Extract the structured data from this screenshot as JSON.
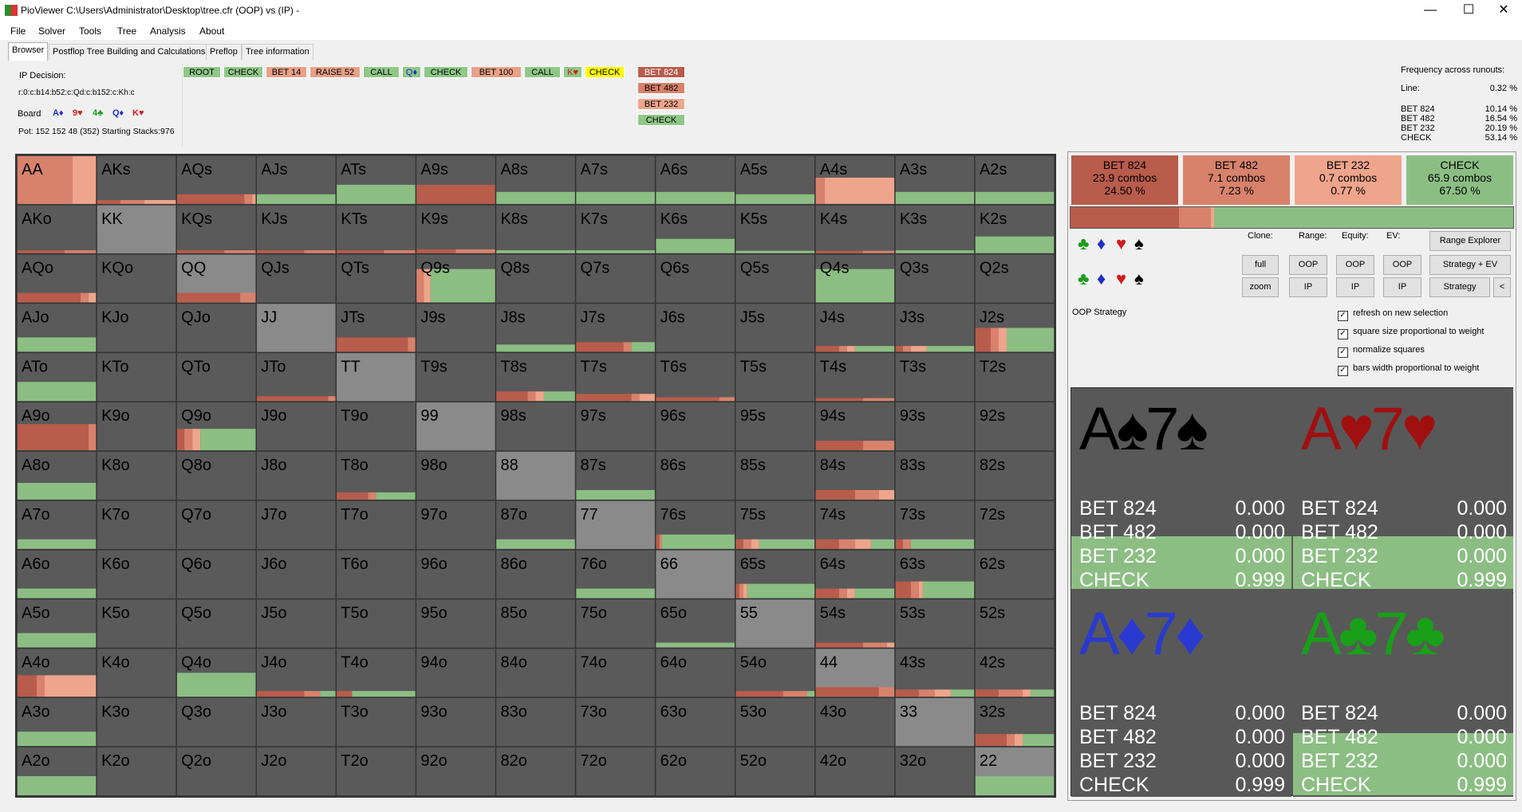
{
  "window": {
    "title": "PioViewer C:\\Users\\Administrator\\Desktop\\tree.cfr (OOP) vs (IP) -",
    "minimize": "—",
    "maximize": "☐",
    "close": "✕"
  },
  "menu": [
    "File",
    "Solver",
    "Tools",
    "Tree",
    "Analysis",
    "About"
  ],
  "tabs": [
    "Browser",
    "Postflop Tree Building and Calculations",
    "Preflop",
    "Tree information"
  ],
  "info": {
    "decision": "IP Decision:",
    "line": "r:0:c:b14:b52:c:Qd:c:b152:c:Kh:c",
    "board_label": "Board",
    "board": [
      {
        "text": "A♦",
        "suit": "d"
      },
      {
        "text": "9♥",
        "suit": "h"
      },
      {
        "text": "4♣",
        "suit": "c"
      },
      {
        "text": "Q♦",
        "suit": "d"
      },
      {
        "text": "K♥",
        "suit": "h"
      }
    ],
    "pot": "Pot: 152 152 48 (352) Starting Stacks:976"
  },
  "tree_nodes": [
    {
      "label": "ROOT",
      "bg": "#90c888"
    },
    {
      "label": "CHECK",
      "bg": "#90c888"
    },
    {
      "label": "BET 14",
      "bg": "#e8a188"
    },
    {
      "label": "RAISE 52",
      "bg": "#e8a188"
    },
    {
      "label": "CALL",
      "bg": "#90c888"
    },
    {
      "label": "Q♦",
      "bg": "#90c888",
      "color": "#1c2fc4"
    },
    {
      "label": "CHECK",
      "bg": "#90c888"
    },
    {
      "label": "BET 100",
      "bg": "#e8a188"
    },
    {
      "label": "CALL",
      "bg": "#90c888"
    },
    {
      "label": "K♥",
      "bg": "#90c888",
      "color": "#d41a1a"
    },
    {
      "label": "CHECK",
      "bg": "#ffff00"
    }
  ],
  "tree_options": [
    {
      "label": "BET 824",
      "bg": "#b85c4c"
    },
    {
      "label": "BET 482",
      "bg": "#d8826c"
    },
    {
      "label": "BET 232",
      "bg": "#eea58c"
    },
    {
      "label": "CHECK",
      "bg": "#90c888"
    }
  ],
  "freq": {
    "title": "Frequency across runouts:",
    "line_label": "Line:",
    "line_value": "0.32 %",
    "rows": [
      {
        "name": "BET 824",
        "value": "10.14 %"
      },
      {
        "name": "BET 482",
        "value": "16.54 %"
      },
      {
        "name": "BET 232",
        "value": "20.19 %"
      },
      {
        "name": "CHECK",
        "value": "53.14 %"
      }
    ]
  },
  "grid_cells": [
    "AA",
    "AKs",
    "AQs",
    "AJs",
    "ATs",
    "A9s",
    "A8s",
    "A7s",
    "A6s",
    "A5s",
    "A4s",
    "A3s",
    "A2s",
    "AKo",
    "KK",
    "KQs",
    "KJs",
    "KTs",
    "K9s",
    "K8s",
    "K7s",
    "K6s",
    "K5s",
    "K4s",
    "K3s",
    "K2s",
    "AQo",
    "KQo",
    "QQ",
    "QJs",
    "QTs",
    "Q9s",
    "Q8s",
    "Q7s",
    "Q6s",
    "Q5s",
    "Q4s",
    "Q3s",
    "Q2s",
    "AJo",
    "KJo",
    "QJo",
    "JJ",
    "JTs",
    "J9s",
    "J8s",
    "J7s",
    "J6s",
    "J5s",
    "J4s",
    "J3s",
    "J2s",
    "ATo",
    "KTo",
    "QTo",
    "JTo",
    "TT",
    "T9s",
    "T8s",
    "T7s",
    "T6s",
    "T5s",
    "T4s",
    "T3s",
    "T2s",
    "A9o",
    "K9o",
    "Q9o",
    "J9o",
    "T9o",
    "99",
    "98s",
    "97s",
    "96s",
    "95s",
    "94s",
    "93s",
    "92s",
    "A8o",
    "K8o",
    "Q8o",
    "J8o",
    "T8o",
    "98o",
    "88",
    "87s",
    "86s",
    "85s",
    "84s",
    "83s",
    "82s",
    "A7o",
    "K7o",
    "Q7o",
    "J7o",
    "T7o",
    "97o",
    "87o",
    "77",
    "76s",
    "75s",
    "74s",
    "73s",
    "72s",
    "A6o",
    "K6o",
    "Q6o",
    "J6o",
    "T6o",
    "96o",
    "86o",
    "76o",
    "66",
    "65s",
    "64s",
    "63s",
    "62s",
    "A5o",
    "K5o",
    "Q5o",
    "J5o",
    "T5o",
    "95o",
    "85o",
    "75o",
    "65o",
    "55",
    "54s",
    "53s",
    "52s",
    "A4o",
    "K4o",
    "Q4o",
    "J4o",
    "T4o",
    "94o",
    "84o",
    "74o",
    "64o",
    "54o",
    "44",
    "43s",
    "42s",
    "A3o",
    "K3o",
    "Q3o",
    "J3o",
    "T3o",
    "93o",
    "83o",
    "73o",
    "63o",
    "53o",
    "43o",
    "33",
    "32s",
    "A2o",
    "K2o",
    "Q2o",
    "J2o",
    "T2o",
    "92o",
    "82o",
    "72o",
    "62o",
    "52o",
    "42o",
    "32o",
    "22"
  ],
  "grid_strategy": {
    "AA": {
      "h": 1.0,
      "a": [
        0,
        0.7,
        0.3,
        0
      ]
    },
    "AKs": {
      "h": 0.08,
      "a": [
        0.3,
        0.3,
        0.4,
        0
      ]
    },
    "AQs": {
      "h": 0.2,
      "a": [
        0.85,
        0.1,
        0.05,
        0
      ]
    },
    "AJs": {
      "h": 0.2,
      "a": [
        0,
        0,
        0,
        1
      ]
    },
    "ATs": {
      "h": 0.4,
      "a": [
        0,
        0,
        0,
        1
      ]
    },
    "A9s": {
      "h": 0.4,
      "a": [
        1,
        0,
        0,
        0
      ]
    },
    "A8s": {
      "h": 0.25,
      "a": [
        0,
        0,
        0,
        1
      ]
    },
    "A7s": {
      "h": 0.25,
      "a": [
        0,
        0,
        0,
        1
      ]
    },
    "A6s": {
      "h": 0.25,
      "a": [
        0,
        0,
        0,
        1
      ]
    },
    "A5s": {
      "h": 0.2,
      "a": [
        0,
        0,
        0,
        1
      ]
    },
    "A4s": {
      "h": 0.55,
      "a": [
        0,
        0.12,
        0.88,
        0
      ]
    },
    "A3s": {
      "h": 0.25,
      "a": [
        0,
        0,
        0,
        1
      ]
    },
    "A2s": {
      "h": 0.25,
      "a": [
        0,
        0,
        0,
        1
      ]
    },
    "AKo": {
      "h": 0.06,
      "a": [
        0.6,
        0.4,
        0,
        0
      ]
    },
    "KQs": {
      "h": 0.06,
      "a": [
        0.6,
        0.4,
        0,
        0
      ]
    },
    "KJs": {
      "h": 0.06,
      "a": [
        0.6,
        0.4,
        0,
        0
      ]
    },
    "KTs": {
      "h": 0.06,
      "a": [
        0.6,
        0.4,
        0,
        0
      ]
    },
    "K9s": {
      "h": 0.08,
      "a": [
        0.5,
        0.5,
        0,
        0
      ]
    },
    "K8s": {
      "h": 0.06,
      "a": [
        0,
        0,
        0,
        1
      ]
    },
    "K7s": {
      "h": 0.06,
      "a": [
        0,
        0,
        0,
        1
      ]
    },
    "K6s": {
      "h": 0.3,
      "a": [
        0,
        0,
        0,
        1
      ]
    },
    "K5s": {
      "h": 0.05,
      "a": [
        0,
        0,
        0,
        1
      ]
    },
    "K4s": {
      "h": 0.05,
      "a": [
        0.6,
        0.4,
        0,
        0
      ]
    },
    "K3s": {
      "h": 0.06,
      "a": [
        0,
        0,
        0,
        1
      ]
    },
    "K2s": {
      "h": 0.35,
      "a": [
        0,
        0,
        0,
        1
      ]
    },
    "AQo": {
      "h": 0.2,
      "a": [
        0.8,
        0.1,
        0.1,
        0
      ]
    },
    "QQ": {
      "h": 0.2,
      "a": [
        0.8,
        0.2,
        0,
        0
      ]
    },
    "Q9s": {
      "h": 0.7,
      "a": [
        0,
        0.1,
        0.08,
        0.82
      ]
    },
    "Q4s": {
      "h": 0.7,
      "a": [
        0,
        0,
        0,
        1
      ]
    },
    "AJo": {
      "h": 0.3,
      "a": [
        0,
        0,
        0,
        1
      ]
    },
    "JTs": {
      "h": 0.3,
      "a": [
        0.9,
        0.1,
        0,
        0
      ]
    },
    "J8s": {
      "h": 0.15,
      "a": [
        0,
        0,
        0,
        1
      ]
    },
    "J7s": {
      "h": 0.2,
      "a": [
        0.6,
        0.1,
        0,
        0.3
      ]
    },
    "J4s": {
      "h": 0.12,
      "a": [
        0.3,
        0.1,
        0.1,
        0.5
      ]
    },
    "J3s": {
      "h": 0.12,
      "a": [
        0.1,
        0.1,
        0.2,
        0.6
      ]
    },
    "J2s": {
      "h": 0.5,
      "a": [
        0.2,
        0.1,
        0.1,
        0.6
      ]
    },
    "ATo": {
      "h": 0.4,
      "a": [
        0,
        0,
        0,
        1
      ]
    },
    "JTo": {
      "h": 0.1,
      "a": [
        0.9,
        0.1,
        0,
        0
      ]
    },
    "T8s": {
      "h": 0.2,
      "a": [
        0.4,
        0.1,
        0.1,
        0.4
      ]
    },
    "T7s": {
      "h": 0.15,
      "a": [
        0.7,
        0.1,
        0.2,
        0
      ]
    },
    "T6s": {
      "h": 0.08,
      "a": [
        0.8,
        0.2,
        0,
        0
      ]
    },
    "T4s": {
      "h": 0.06,
      "a": [
        0.6,
        0.4,
        0,
        0
      ]
    },
    "A9o": {
      "h": 0.55,
      "a": [
        0.9,
        0.1,
        0,
        0
      ]
    },
    "Q9o": {
      "h": 0.45,
      "a": [
        0.1,
        0.1,
        0.1,
        0.7
      ]
    },
    "94s": {
      "h": 0.2,
      "a": [
        0.6,
        0.4,
        0,
        0
      ]
    },
    "A8o": {
      "h": 0.35,
      "a": [
        0,
        0,
        0,
        1
      ]
    },
    "T8o": {
      "h": 0.15,
      "a": [
        0.4,
        0.1,
        0,
        0.5
      ]
    },
    "87s": {
      "h": 0.2,
      "a": [
        0,
        0,
        0,
        1
      ]
    },
    "84s": {
      "h": 0.2,
      "a": [
        0.5,
        0.3,
        0.2,
        0
      ]
    },
    "A7o": {
      "h": 0.2,
      "a": [
        0,
        0,
        0,
        1
      ]
    },
    "87o": {
      "h": 0.2,
      "a": [
        0,
        0,
        0,
        1
      ]
    },
    "76s": {
      "h": 0.3,
      "a": [
        0.05,
        0.03,
        0,
        0.92
      ]
    },
    "75s": {
      "h": 0.2,
      "a": [
        0.1,
        0.1,
        0.1,
        0.7
      ]
    },
    "74s": {
      "h": 0.2,
      "a": [
        0.3,
        0.2,
        0.2,
        0.3
      ]
    },
    "73s": {
      "h": 0.2,
      "a": [
        0.1,
        0.1,
        0,
        0.8
      ]
    },
    "A6o": {
      "h": 0.2,
      "a": [
        0,
        0,
        0,
        1
      ]
    },
    "76o": {
      "h": 0.2,
      "a": [
        0,
        0,
        0,
        1
      ]
    },
    "65s": {
      "h": 0.3,
      "a": [
        0.05,
        0.05,
        0.05,
        0.85
      ]
    },
    "64s": {
      "h": 0.2,
      "a": [
        0.3,
        0.1,
        0.1,
        0.5
      ]
    },
    "63s": {
      "h": 0.35,
      "a": [
        0.2,
        0.1,
        0.05,
        0.65
      ]
    },
    "A5o": {
      "h": 0.3,
      "a": [
        0,
        0,
        0,
        1
      ]
    },
    "65o": {
      "h": 0.1,
      "a": [
        0,
        0,
        0,
        1
      ]
    },
    "54s": {
      "h": 0.1,
      "a": [
        0.6,
        0.3,
        0.1,
        0
      ]
    },
    "A4o": {
      "h": 0.45,
      "a": [
        0.25,
        0.1,
        0.65,
        0
      ]
    },
    "Q4o": {
      "h": 0.5,
      "a": [
        0,
        0,
        0,
        1
      ]
    },
    "J4o": {
      "h": 0.12,
      "a": [
        0.6,
        0.2,
        0,
        0.2
      ]
    },
    "T4o": {
      "h": 0.12,
      "a": [
        0.2,
        0,
        0,
        0.8
      ]
    },
    "54o": {
      "h": 0.12,
      "a": [
        0.6,
        0.3,
        0,
        0.1
      ]
    },
    "44": {
      "h": 0.2,
      "a": [
        0.8,
        0.2,
        0,
        0
      ]
    },
    "43s": {
      "h": 0.15,
      "a": [
        0.3,
        0.2,
        0.2,
        0.3
      ]
    },
    "42s": {
      "h": 0.15,
      "a": [
        0.3,
        0.3,
        0.1,
        0.3
      ]
    },
    "A3o": {
      "h": 0.3,
      "a": [
        0,
        0,
        0,
        1
      ]
    },
    "32s": {
      "h": 0.25,
      "a": [
        0.4,
        0.1,
        0.1,
        0.4
      ]
    },
    "A2o": {
      "h": 0.4,
      "a": [
        0,
        0,
        0,
        1
      ]
    },
    "22": {
      "h": 0.4,
      "a": [
        0,
        0,
        0,
        1
      ]
    }
  },
  "pairs": [
    "AA",
    "KK",
    "QQ",
    "JJ",
    "TT",
    "99",
    "88",
    "77",
    "66",
    "55",
    "44",
    "33",
    "22"
  ],
  "colors": {
    "cell": "#5a5a5a",
    "pair": "#8a8a8a",
    "bet824": "#b85c4c",
    "bet482": "#d8826c",
    "bet232": "#eea58c",
    "check": "#8cbe84",
    "border": "#333333"
  },
  "actions": [
    {
      "name": "BET 824",
      "combos": "23.9 combos",
      "pct": "24.50 %",
      "bg": "#b85c4c"
    },
    {
      "name": "BET 482",
      "combos": "7.1 combos",
      "pct": "7.23 %",
      "bg": "#d8826c"
    },
    {
      "name": "BET 232",
      "combos": "0.7 combos",
      "pct": "0.77 %",
      "bg": "#eea58c"
    },
    {
      "name": "CHECK",
      "combos": "65.9 combos",
      "pct": "67.50 %",
      "bg": "#8cbe84"
    }
  ],
  "controls": {
    "clone": "Clone:",
    "range": "Range:",
    "equity": "Equity:",
    "ev": "EV:",
    "full": "full",
    "zoom": "zoom",
    "oop": "OOP",
    "ip": "IP",
    "range_explorer": "Range Explorer",
    "strategy_ev": "Strategy + EV",
    "strategy": "Strategy",
    "collapse": "<",
    "oop_strategy": "OOP Strategy",
    "checks": [
      "refresh on new selection",
      "square size proportional to weight",
      "normalize squares",
      "bars width proportional to weight"
    ]
  },
  "combos": [
    {
      "hand": "A♠7♠",
      "suit": "s",
      "color": "#000000",
      "rows": [
        {
          "n": "BET 824",
          "v": "0.000"
        },
        {
          "n": "BET 482",
          "v": "0.000"
        },
        {
          "n": "BET 232",
          "v": "0.000"
        },
        {
          "n": "CHECK",
          "v": "0.999"
        }
      ]
    },
    {
      "hand": "A♥7♥",
      "suit": "h",
      "color": "#a01010",
      "rows": [
        {
          "n": "BET 824",
          "v": "0.000"
        },
        {
          "n": "BET 482",
          "v": "0.000"
        },
        {
          "n": "BET 232",
          "v": "0.000"
        },
        {
          "n": "CHECK",
          "v": "0.999"
        }
      ]
    },
    {
      "hand": "A♦7♦",
      "suit": "d",
      "color": "#2a3ad0",
      "rows": [
        {
          "n": "BET 824",
          "v": "0.000"
        },
        {
          "n": "BET 482",
          "v": "0.000"
        },
        {
          "n": "BET 232",
          "v": "0.000"
        },
        {
          "n": "CHECK",
          "v": "0.999"
        }
      ]
    },
    {
      "hand": "A♣7♣",
      "suit": "c",
      "color": "#18a018",
      "rows": [
        {
          "n": "BET 824",
          "v": "0.000"
        },
        {
          "n": "BET 482",
          "v": "0.000"
        },
        {
          "n": "BET 232",
          "v": "0.000"
        },
        {
          "n": "CHECK",
          "v": "0.999"
        }
      ]
    }
  ]
}
